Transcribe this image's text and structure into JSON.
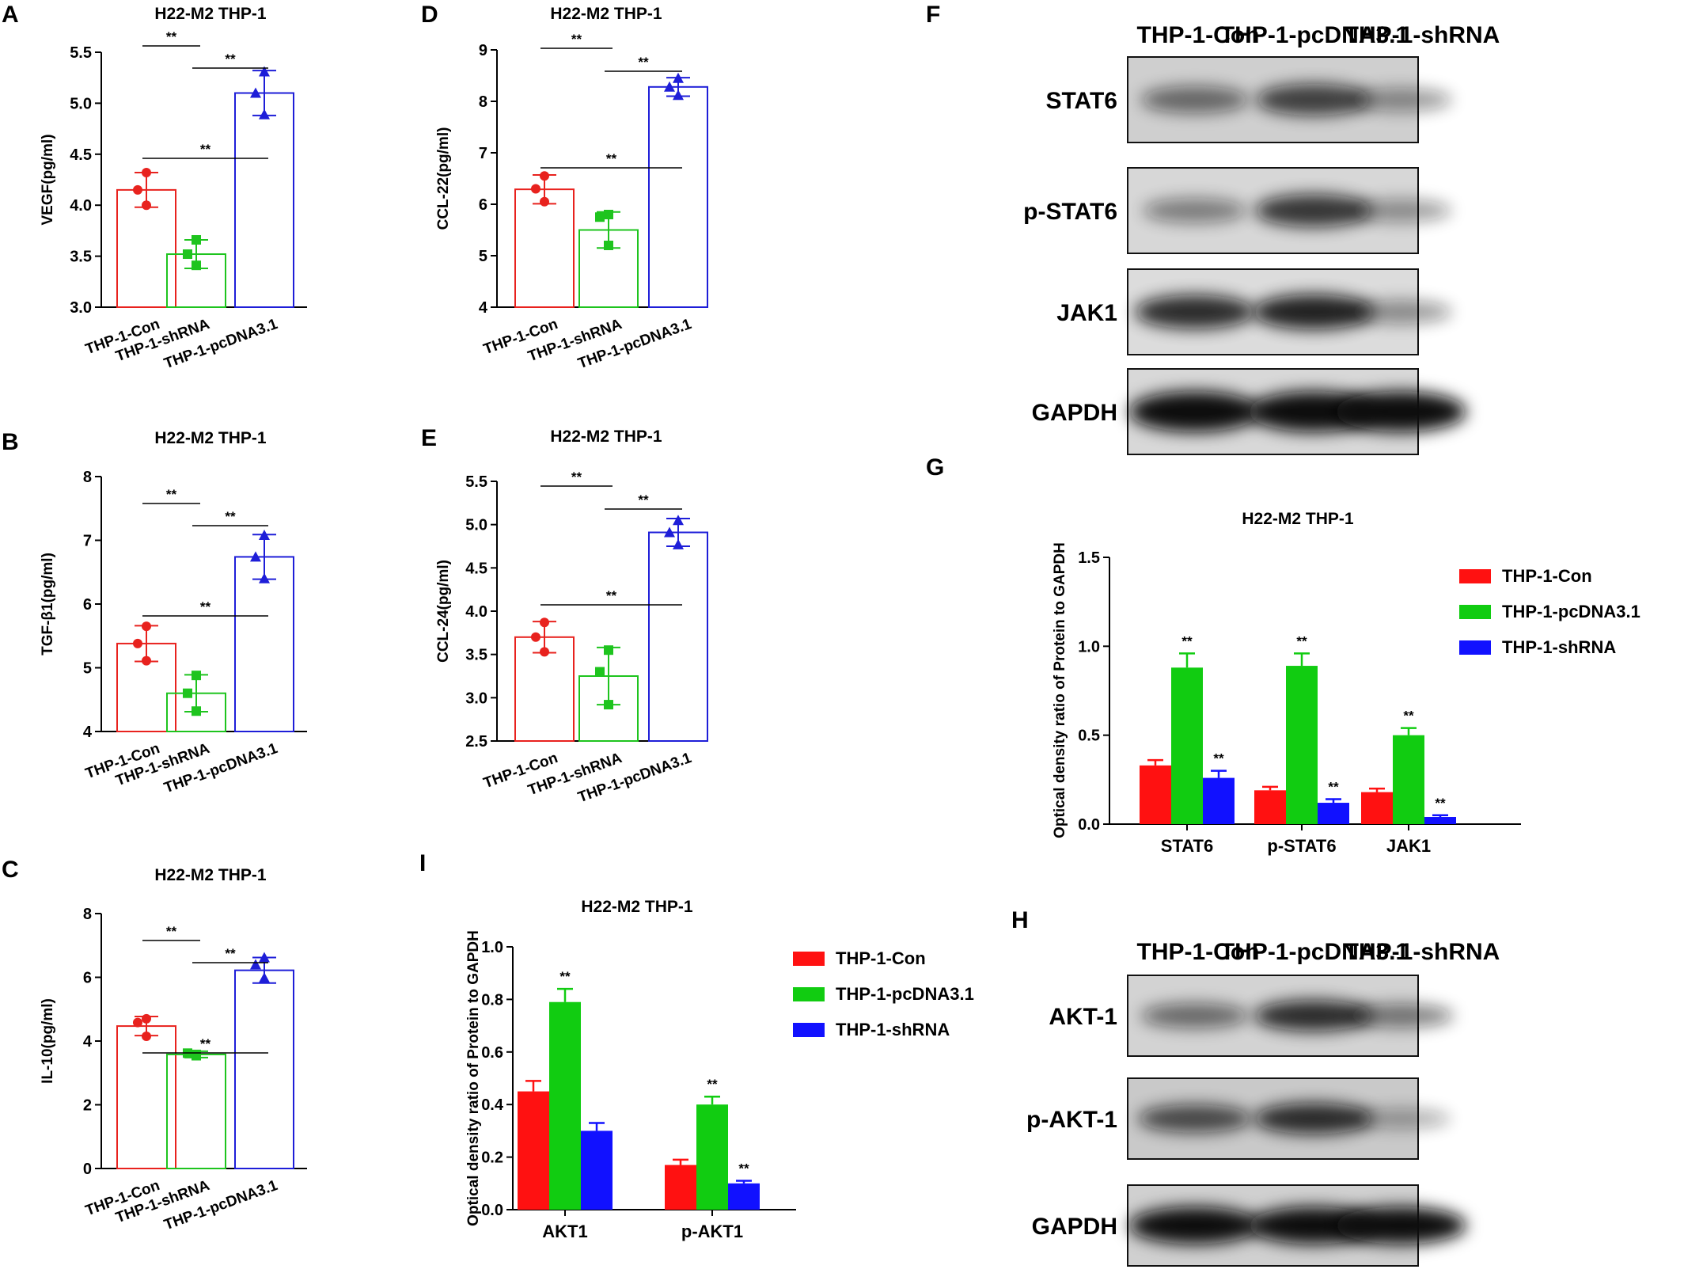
{
  "panel_letters": {
    "A": "A",
    "B": "B",
    "C": "C",
    "D": "D",
    "E": "E",
    "F": "F",
    "G": "G",
    "H": "H",
    "I": "I"
  },
  "chart_data": [
    {
      "id": "A",
      "type": "bar",
      "title": "H22-M2 THP-1",
      "ylabel": "VEGF(pg/ml)",
      "ylim": [
        3.0,
        5.5
      ],
      "yticks": [
        3.0,
        3.5,
        4.0,
        4.5,
        5.0,
        5.5
      ],
      "tick_decimals": 1,
      "categories": [
        "THP-1-Con",
        "THP-1-shRNA",
        "THP-1-pcDNA3.1"
      ],
      "values": [
        4.15,
        3.52,
        5.1
      ],
      "errors": [
        0.17,
        0.14,
        0.22
      ],
      "points": [
        [
          4.32,
          4.15,
          4.0
        ],
        [
          3.66,
          3.52,
          3.41
        ],
        [
          5.31,
          5.1,
          4.89
        ]
      ],
      "colors": [
        "#e8221e",
        "#1ec41e",
        "#1e1ed8"
      ],
      "significance": [
        {
          "from": 1,
          "to": 2,
          "label": "**"
        },
        {
          "from": 0,
          "to": 1,
          "label": "**"
        },
        {
          "from": 0,
          "to": 2,
          "label": "**"
        }
      ]
    },
    {
      "id": "B",
      "type": "bar",
      "title": "H22-M2 THP-1",
      "ylabel": "TGF-β1(pg/ml)",
      "ylim": [
        4,
        8
      ],
      "yticks": [
        4,
        5,
        6,
        7,
        8
      ],
      "tick_decimals": 0,
      "categories": [
        "THP-1-Con",
        "THP-1-shRNA",
        "THP-1-pcDNA3.1"
      ],
      "values": [
        5.38,
        4.6,
        6.74
      ],
      "errors": [
        0.28,
        0.29,
        0.35
      ],
      "points": [
        [
          5.65,
          5.38,
          5.11
        ],
        [
          4.88,
          4.6,
          4.32
        ],
        [
          7.08,
          6.74,
          6.4
        ]
      ],
      "colors": [
        "#e8221e",
        "#1ec41e",
        "#1e1ed8"
      ],
      "significance": [
        {
          "from": 1,
          "to": 2,
          "label": "**"
        },
        {
          "from": 0,
          "to": 1,
          "label": "**"
        },
        {
          "from": 0,
          "to": 2,
          "label": "**"
        }
      ]
    },
    {
      "id": "C",
      "type": "bar",
      "title": "H22-M2 THP-1",
      "ylabel": "IL-10(pg/ml)",
      "ylim": [
        0,
        8
      ],
      "yticks": [
        0,
        2,
        4,
        6,
        8
      ],
      "tick_decimals": 0,
      "categories": [
        "THP-1-Con",
        "THP-1-shRNA",
        "THP-1-pcDNA3.1"
      ],
      "values": [
        4.47,
        3.58,
        6.22
      ],
      "errors": [
        0.3,
        0.1,
        0.4
      ],
      "points": [
        [
          4.7,
          4.58,
          4.15
        ],
        [
          3.58,
          3.62,
          3.54
        ],
        [
          6.62,
          6.4,
          5.98
        ]
      ],
      "colors": [
        "#e8221e",
        "#1ec41e",
        "#1e1ed8"
      ],
      "significance": [
        {
          "from": 1,
          "to": 2,
          "label": "**"
        },
        {
          "from": 0,
          "to": 1,
          "label": "**"
        },
        {
          "from": 0,
          "to": 2,
          "label": "**"
        }
      ]
    },
    {
      "id": "D",
      "type": "bar",
      "title": "H22-M2 THP-1",
      "ylabel": "CCL-22(pg/ml)",
      "ylim": [
        4,
        9
      ],
      "yticks": [
        4,
        5,
        6,
        7,
        8,
        9
      ],
      "tick_decimals": 0,
      "categories": [
        "THP-1-Con",
        "THP-1-shRNA",
        "THP-1-pcDNA3.1"
      ],
      "values": [
        6.29,
        5.5,
        8.28
      ],
      "errors": [
        0.28,
        0.35,
        0.18
      ],
      "points": [
        [
          6.55,
          6.3,
          6.05
        ],
        [
          5.8,
          5.75,
          5.2
        ],
        [
          8.45,
          8.28,
          8.12
        ]
      ],
      "colors": [
        "#e8221e",
        "#1ec41e",
        "#1e1ed8"
      ],
      "significance": [
        {
          "from": 1,
          "to": 2,
          "label": "**"
        },
        {
          "from": 0,
          "to": 1,
          "label": "**"
        },
        {
          "from": 0,
          "to": 2,
          "label": "**"
        }
      ]
    },
    {
      "id": "E",
      "type": "bar",
      "title": "H22-M2 THP-1",
      "ylabel": "CCL-24(pg/ml)",
      "ylim": [
        2.5,
        5.5
      ],
      "yticks": [
        2.5,
        3.0,
        3.5,
        4.0,
        4.5,
        5.0,
        5.5
      ],
      "tick_decimals": 1,
      "categories": [
        "THP-1-Con",
        "THP-1-shRNA",
        "THP-1-pcDNA3.1"
      ],
      "values": [
        3.7,
        3.25,
        4.91
      ],
      "errors": [
        0.18,
        0.33,
        0.16
      ],
      "points": [
        [
          3.87,
          3.7,
          3.53
        ],
        [
          3.55,
          3.3,
          2.92
        ],
        [
          5.05,
          4.91,
          4.77
        ]
      ],
      "colors": [
        "#e8221e",
        "#1ec41e",
        "#1e1ed8"
      ],
      "significance": [
        {
          "from": 1,
          "to": 2,
          "label": "**"
        },
        {
          "from": 0,
          "to": 1,
          "label": "**"
        },
        {
          "from": 0,
          "to": 2,
          "label": "**"
        }
      ]
    },
    {
      "id": "G",
      "type": "bar",
      "title": "H22-M2 THP-1",
      "ylabel": "Optical density ratio of Protein to GAPDH",
      "ylim": [
        0,
        1.5
      ],
      "yticks": [
        0.0,
        0.5,
        1.0,
        1.5
      ],
      "tick_decimals": 1,
      "categories": [
        "STAT6",
        "p-STAT6",
        "JAK1"
      ],
      "series": [
        {
          "name": "THP-1-Con",
          "color": "#ff1111",
          "values": [
            0.33,
            0.19,
            0.18
          ],
          "errors": [
            0.03,
            0.02,
            0.02
          ],
          "sig": [
            "",
            "",
            ""
          ]
        },
        {
          "name": "THP-1-pcDNA3.1",
          "color": "#11cc11",
          "values": [
            0.88,
            0.89,
            0.5
          ],
          "errors": [
            0.08,
            0.07,
            0.04
          ],
          "sig": [
            "**",
            "**",
            "**"
          ]
        },
        {
          "name": "THP-1-shRNA",
          "color": "#1111ff",
          "values": [
            0.26,
            0.12,
            0.04
          ],
          "errors": [
            0.04,
            0.02,
            0.01
          ],
          "sig": [
            "**",
            "**",
            "**"
          ]
        }
      ],
      "legend": "top-right"
    },
    {
      "id": "I",
      "type": "bar",
      "title": "H22-M2 THP-1",
      "ylabel": "Optical density ratio of Protein to GAPDH",
      "ylim": [
        0,
        1.0
      ],
      "yticks": [
        0.0,
        0.2,
        0.4,
        0.6,
        0.8,
        1.0
      ],
      "tick_decimals": 1,
      "categories": [
        "AKT1",
        "p-AKT1"
      ],
      "series": [
        {
          "name": "THP-1-Con",
          "color": "#ff1111",
          "values": [
            0.45,
            0.17
          ],
          "errors": [
            0.04,
            0.02
          ],
          "sig": [
            "",
            ""
          ]
        },
        {
          "name": "THP-1-pcDNA3.1",
          "color": "#11cc11",
          "values": [
            0.79,
            0.4
          ],
          "errors": [
            0.05,
            0.03
          ],
          "sig": [
            "**",
            "**"
          ]
        },
        {
          "name": "THP-1-shRNA",
          "color": "#1111ff",
          "values": [
            0.3,
            0.1
          ],
          "errors": [
            0.03,
            0.01
          ],
          "sig": [
            "",
            "**"
          ]
        }
      ],
      "legend": "top-right"
    }
  ],
  "blots": {
    "F": {
      "lanes": [
        "THP-1-Con",
        "THP-1-pcDNA3.1",
        "THP-1-shRNA"
      ],
      "rows": [
        "STAT6",
        "p-STAT6",
        "JAK1",
        "GAPDH"
      ]
    },
    "H": {
      "lanes": [
        "THP-1-Con",
        "THP-1-pcDNA3.1",
        "THP-1-shRNA"
      ],
      "rows": [
        "AKT-1",
        "p-AKT-1",
        "GAPDH"
      ]
    }
  }
}
